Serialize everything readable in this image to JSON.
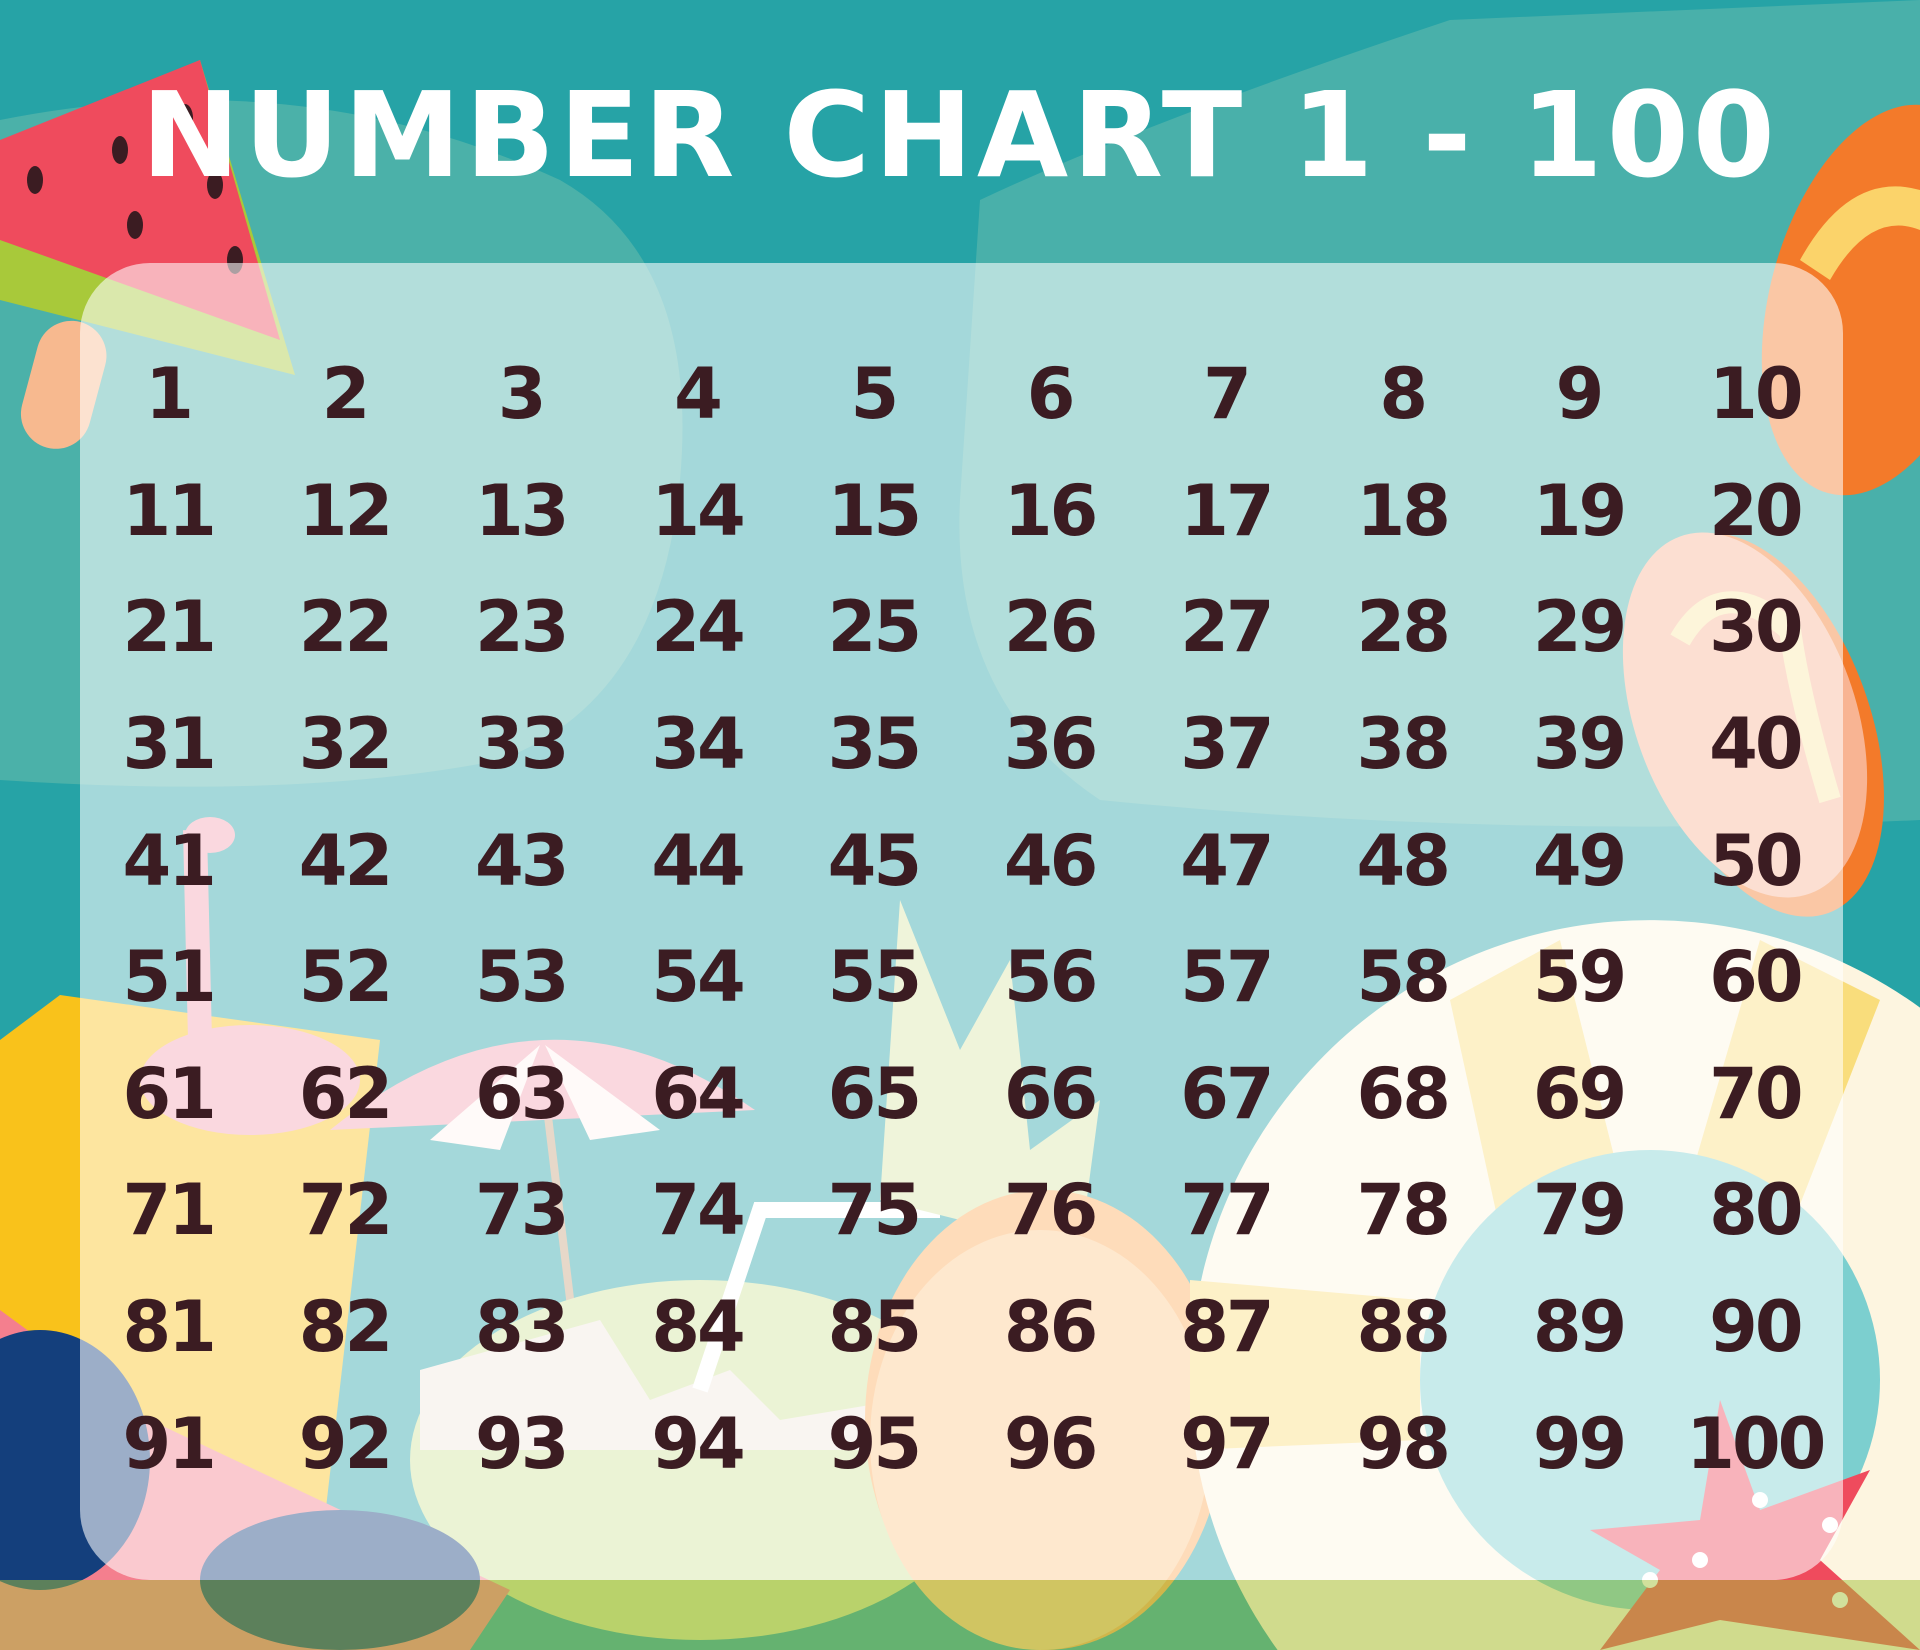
{
  "title": "NUMBER CHART 1 - 100",
  "colors": {
    "background": "#26a3a6",
    "title": "#ffffff",
    "numbers": "#3b1c22",
    "panel": "#a9dcdc"
  },
  "decorations": [
    "watermelon-popsicle",
    "orange-flip-flop",
    "pink-flip-flop",
    "flamingo",
    "beach-umbrella",
    "sand-bucket",
    "coconut-drink",
    "pineapple",
    "swim-ring",
    "sunglasses",
    "starfish"
  ],
  "rows": [
    [
      "1",
      "2",
      "3",
      "4",
      "5",
      "6",
      "7",
      "8",
      "9",
      "10"
    ],
    [
      "11",
      "12",
      "13",
      "14",
      "15",
      "16",
      "17",
      "18",
      "19",
      "20"
    ],
    [
      "21",
      "22",
      "23",
      "24",
      "25",
      "26",
      "27",
      "28",
      "29",
      "30"
    ],
    [
      "31",
      "32",
      "33",
      "34",
      "35",
      "36",
      "37",
      "38",
      "39",
      "40"
    ],
    [
      "41",
      "42",
      "43",
      "44",
      "45",
      "46",
      "47",
      "48",
      "49",
      "50"
    ],
    [
      "51",
      "52",
      "53",
      "54",
      "55",
      "56",
      "57",
      "58",
      "59",
      "60"
    ],
    [
      "61",
      "62",
      "63",
      "64",
      "65",
      "66",
      "67",
      "68",
      "69",
      "70"
    ],
    [
      "71",
      "72",
      "73",
      "74",
      "75",
      "76",
      "77",
      "78",
      "79",
      "80"
    ],
    [
      "81",
      "82",
      "83",
      "84",
      "85",
      "86",
      "87",
      "88",
      "89",
      "90"
    ],
    [
      "91",
      "92",
      "93",
      "94",
      "95",
      "96",
      "97",
      "98",
      "99",
      "100"
    ]
  ]
}
